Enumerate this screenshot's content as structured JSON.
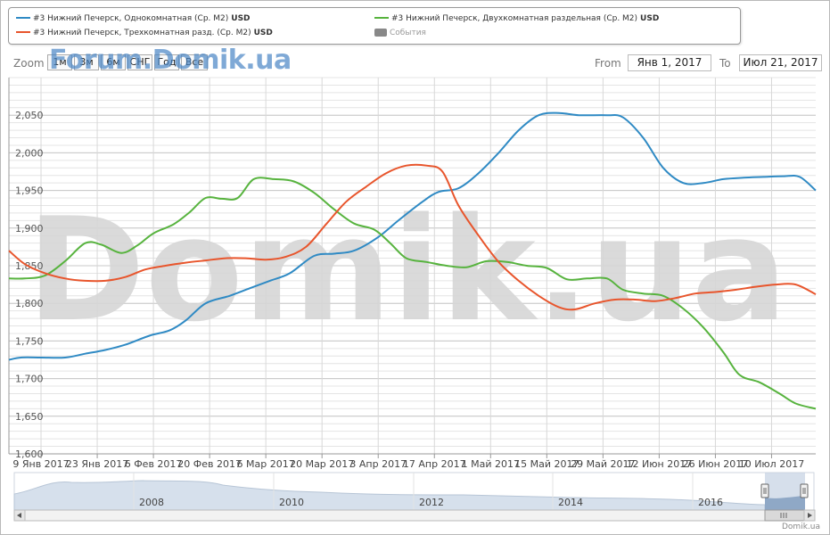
{
  "legend": {
    "items": [
      {
        "label": "#3 Нижний Печерск, Однокомнатная (Ср. М2)",
        "unit": "USD",
        "color": "#2f8ac4"
      },
      {
        "label": "#3 Нижний Печерск, Двухкомнатная раздельная (Ср. М2)",
        "unit": "USD",
        "color": "#57b33e"
      },
      {
        "label": "#3 Нижний Печерск, Трехкомнатная разд. (Ср. М2)",
        "unit": "USD",
        "color": "#e8552c"
      },
      {
        "label": "События",
        "color": "#888888"
      }
    ]
  },
  "toolbar": {
    "zoom_label": "Zoom",
    "zoom_buttons": [
      "1м",
      "3м",
      "6м",
      "СНГ",
      "Год",
      "Все"
    ],
    "from_label": "From",
    "from_value": "Янв 1, 2017",
    "to_label": "To",
    "to_value": "Июл 21, 2017"
  },
  "watermark_top": "Forum.Domik.ua",
  "watermark_big": "Domik.ua",
  "event_dots": [
    {
      "color": "#4f8fc8"
    },
    {
      "color": "#d4dc6c"
    },
    {
      "color": "#d06d8b"
    }
  ],
  "credit": "Domik.ua",
  "chart_data": {
    "type": "line",
    "x_tick_labels": [
      "9 Янв 2017",
      "23 Янв 2017",
      "6 Фев 2017",
      "20 Фев 2017",
      "6 Мар 2017",
      "20 Мар 2017",
      "3 Апр 2017",
      "17 Апр 2017",
      "1 Май 2017",
      "15 Май 2017",
      "29 Май 2017",
      "12 Июн 2017",
      "26 Июн 2017",
      "10 Июл 2017"
    ],
    "x_range": [
      "2017-01-01",
      "2017-07-21"
    ],
    "y_ticks": [
      1600,
      1650,
      1700,
      1750,
      1800,
      1850,
      1900,
      1950,
      2000,
      2050
    ],
    "ylim": [
      1600,
      2100
    ],
    "grid": true,
    "series": [
      {
        "name": "#3 Нижний Печерск, Однокомнатная (Ср. М2)",
        "color": "#2f8ac4",
        "points": [
          [
            "2017-01-01",
            1725
          ],
          [
            "2017-01-04",
            1728
          ],
          [
            "2017-01-09",
            1728
          ],
          [
            "2017-01-15",
            1728
          ],
          [
            "2017-01-20",
            1733
          ],
          [
            "2017-01-25",
            1738
          ],
          [
            "2017-01-30",
            1745
          ],
          [
            "2017-02-05",
            1757
          ],
          [
            "2017-02-10",
            1764
          ],
          [
            "2017-02-14",
            1777
          ],
          [
            "2017-02-19",
            1800
          ],
          [
            "2017-02-25",
            1810
          ],
          [
            "2017-03-02",
            1820
          ],
          [
            "2017-03-07",
            1830
          ],
          [
            "2017-03-12",
            1840
          ],
          [
            "2017-03-18",
            1863
          ],
          [
            "2017-03-23",
            1866
          ],
          [
            "2017-03-28",
            1870
          ],
          [
            "2017-04-03",
            1888
          ],
          [
            "2017-04-08",
            1910
          ],
          [
            "2017-04-14",
            1935
          ],
          [
            "2017-04-18",
            1948
          ],
          [
            "2017-04-23",
            1953
          ],
          [
            "2017-04-28",
            1973
          ],
          [
            "2017-05-03",
            2000
          ],
          [
            "2017-05-08",
            2030
          ],
          [
            "2017-05-13",
            2050
          ],
          [
            "2017-05-18",
            2053
          ],
          [
            "2017-05-23",
            2050
          ],
          [
            "2017-05-30",
            2050
          ],
          [
            "2017-06-03",
            2047
          ],
          [
            "2017-06-08",
            2020
          ],
          [
            "2017-06-13",
            1980
          ],
          [
            "2017-06-18",
            1960
          ],
          [
            "2017-06-23",
            1960
          ],
          [
            "2017-06-28",
            1965
          ],
          [
            "2017-07-03",
            1967
          ],
          [
            "2017-07-08",
            1968
          ],
          [
            "2017-07-13",
            1969
          ],
          [
            "2017-07-17",
            1968
          ],
          [
            "2017-07-21",
            1950
          ]
        ]
      },
      {
        "name": "#3 Нижний Печерск, Двухкомнатная раздельная (Ср. М2)",
        "color": "#57b33e",
        "points": [
          [
            "2017-01-01",
            1833
          ],
          [
            "2017-01-05",
            1833
          ],
          [
            "2017-01-10",
            1837
          ],
          [
            "2017-01-15",
            1856
          ],
          [
            "2017-01-20",
            1880
          ],
          [
            "2017-01-24",
            1878
          ],
          [
            "2017-01-29",
            1867
          ],
          [
            "2017-02-02",
            1877
          ],
          [
            "2017-02-06",
            1893
          ],
          [
            "2017-02-11",
            1905
          ],
          [
            "2017-02-15",
            1921
          ],
          [
            "2017-02-19",
            1940
          ],
          [
            "2017-02-23",
            1939
          ],
          [
            "2017-02-27",
            1940
          ],
          [
            "2017-03-03",
            1965
          ],
          [
            "2017-03-08",
            1965
          ],
          [
            "2017-03-13",
            1962
          ],
          [
            "2017-03-18",
            1947
          ],
          [
            "2017-03-23",
            1925
          ],
          [
            "2017-03-28",
            1906
          ],
          [
            "2017-04-02",
            1898
          ],
          [
            "2017-04-06",
            1880
          ],
          [
            "2017-04-10",
            1860
          ],
          [
            "2017-04-15",
            1855
          ],
          [
            "2017-04-20",
            1850
          ],
          [
            "2017-04-25",
            1848
          ],
          [
            "2017-04-30",
            1856
          ],
          [
            "2017-05-05",
            1855
          ],
          [
            "2017-05-10",
            1850
          ],
          [
            "2017-05-15",
            1847
          ],
          [
            "2017-05-20",
            1832
          ],
          [
            "2017-05-25",
            1833
          ],
          [
            "2017-05-30",
            1833
          ],
          [
            "2017-06-03",
            1818
          ],
          [
            "2017-06-08",
            1813
          ],
          [
            "2017-06-13",
            1810
          ],
          [
            "2017-06-18",
            1793
          ],
          [
            "2017-06-23",
            1768
          ],
          [
            "2017-06-28",
            1735
          ],
          [
            "2017-07-02",
            1705
          ],
          [
            "2017-07-07",
            1695
          ],
          [
            "2017-07-12",
            1680
          ],
          [
            "2017-07-16",
            1667
          ],
          [
            "2017-07-21",
            1660
          ]
        ]
      },
      {
        "name": "#3 Нижний Печерск, Трехкомнатная разд. (Ср. М2)",
        "color": "#e8552c",
        "points": [
          [
            "2017-01-01",
            1870
          ],
          [
            "2017-01-05",
            1852
          ],
          [
            "2017-01-10",
            1840
          ],
          [
            "2017-01-15",
            1833
          ],
          [
            "2017-01-20",
            1830
          ],
          [
            "2017-01-25",
            1830
          ],
          [
            "2017-01-30",
            1835
          ],
          [
            "2017-02-04",
            1845
          ],
          [
            "2017-02-09",
            1850
          ],
          [
            "2017-02-14",
            1854
          ],
          [
            "2017-02-19",
            1857
          ],
          [
            "2017-02-24",
            1860
          ],
          [
            "2017-03-01",
            1860
          ],
          [
            "2017-03-06",
            1858
          ],
          [
            "2017-03-11",
            1862
          ],
          [
            "2017-03-16",
            1875
          ],
          [
            "2017-03-21",
            1905
          ],
          [
            "2017-03-26",
            1935
          ],
          [
            "2017-03-31",
            1955
          ],
          [
            "2017-04-05",
            1973
          ],
          [
            "2017-04-10",
            1983
          ],
          [
            "2017-04-15",
            1983
          ],
          [
            "2017-04-19",
            1975
          ],
          [
            "2017-04-23",
            1930
          ],
          [
            "2017-04-28",
            1890
          ],
          [
            "2017-05-03",
            1855
          ],
          [
            "2017-05-08",
            1830
          ],
          [
            "2017-05-13",
            1810
          ],
          [
            "2017-05-18",
            1795
          ],
          [
            "2017-05-22",
            1792
          ],
          [
            "2017-05-27",
            1800
          ],
          [
            "2017-06-01",
            1805
          ],
          [
            "2017-06-06",
            1805
          ],
          [
            "2017-06-11",
            1803
          ],
          [
            "2017-06-16",
            1807
          ],
          [
            "2017-06-21",
            1813
          ],
          [
            "2017-06-26",
            1815
          ],
          [
            "2017-07-01",
            1818
          ],
          [
            "2017-07-06",
            1822
          ],
          [
            "2017-07-11",
            1825
          ],
          [
            "2017-07-16",
            1825
          ],
          [
            "2017-07-21",
            1812
          ]
        ]
      }
    ],
    "navigator": {
      "tick_labels": [
        "2008",
        "2010",
        "2012",
        "2014",
        "2016"
      ]
    }
  }
}
